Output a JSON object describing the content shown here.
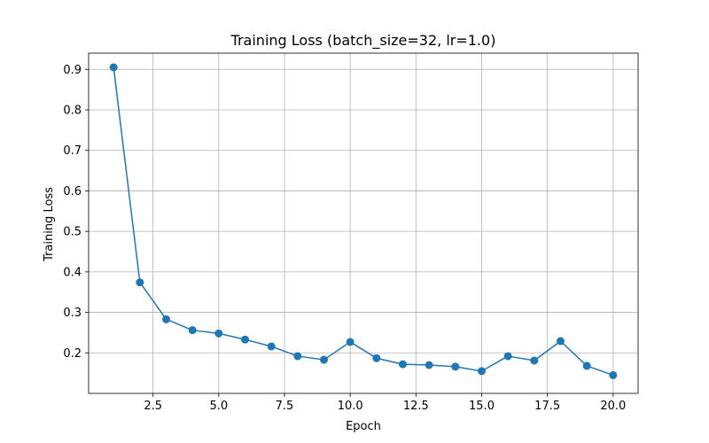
{
  "chart_data": {
    "type": "line",
    "title": "Training Loss (batch_size=32, lr=1.0)",
    "xlabel": "Epoch",
    "ylabel": "Training Loss",
    "xlim": [
      0.05,
      20.95
    ],
    "ylim": [
      0.1,
      0.94
    ],
    "grid": true,
    "legend": "none",
    "x_ticks": [
      2.5,
      5.0,
      7.5,
      10.0,
      12.5,
      15.0,
      17.5,
      20.0
    ],
    "x_tick_labels": [
      "2.5",
      "5.0",
      "7.5",
      "10.0",
      "12.5",
      "15.0",
      "17.5",
      "20.0"
    ],
    "y_ticks": [
      0.2,
      0.3,
      0.4,
      0.5,
      0.6,
      0.7,
      0.8,
      0.9
    ],
    "y_tick_labels": [
      "0.2",
      "0.3",
      "0.4",
      "0.5",
      "0.6",
      "0.7",
      "0.8",
      "0.9"
    ],
    "series": [
      {
        "color": "#1f77b4",
        "marker": "circle",
        "x": [
          1,
          2,
          3,
          4,
          5,
          6,
          7,
          8,
          9,
          10,
          11,
          12,
          13,
          14,
          15,
          16,
          17,
          18,
          19,
          20
        ],
        "values": [
          0.905,
          0.374,
          0.283,
          0.256,
          0.248,
          0.233,
          0.216,
          0.192,
          0.183,
          0.227,
          0.187,
          0.172,
          0.17,
          0.166,
          0.155,
          0.192,
          0.181,
          0.229,
          0.168,
          0.145
        ]
      }
    ]
  }
}
